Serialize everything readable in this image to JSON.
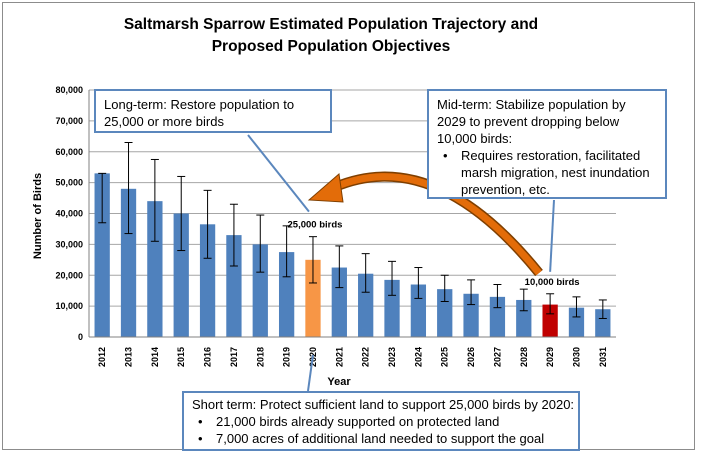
{
  "chart_data": {
    "type": "bar",
    "title": "Saltmarsh Sparrow Estimated Population Trajectory and Proposed Population Objectives",
    "title_lines": [
      "Saltmarsh Sparrow Estimated Population Trajectory and",
      "Proposed Population Objectives"
    ],
    "xlabel": "Year",
    "ylabel": "Number of Birds",
    "ylim": [
      0,
      80000
    ],
    "yticks": [
      0,
      10000,
      20000,
      30000,
      40000,
      50000,
      60000,
      70000,
      80000
    ],
    "ytick_labels": [
      "0",
      "10,000",
      "20,000",
      "30,000",
      "40,000",
      "50,000",
      "60,000",
      "70,000",
      "80,000"
    ],
    "grid": true,
    "categories": [
      "2012",
      "2013",
      "2014",
      "2015",
      "2016",
      "2017",
      "2018",
      "2019",
      "2020",
      "2021",
      "2022",
      "2023",
      "2024",
      "2025",
      "2026",
      "2027",
      "2028",
      "2029",
      "2030",
      "2031"
    ],
    "values": [
      53000,
      48000,
      44000,
      40000,
      36500,
      33000,
      30000,
      27500,
      25000,
      22500,
      20500,
      18500,
      17000,
      15500,
      14000,
      13000,
      12000,
      10500,
      9500,
      9000
    ],
    "error_low": [
      37000,
      33500,
      31000,
      28000,
      25500,
      23000,
      21000,
      19500,
      17500,
      16000,
      14500,
      13500,
      12500,
      11500,
      10500,
      9500,
      8500,
      7500,
      6500,
      6000
    ],
    "error_high": [
      53000,
      63000,
      57500,
      52000,
      47500,
      43000,
      39500,
      36000,
      32500,
      29500,
      27000,
      24500,
      22500,
      20000,
      18500,
      17000,
      15500,
      14000,
      13000,
      12000
    ],
    "colors": {
      "default": "#4f81bd",
      "highlight_2020": "#f79646",
      "highlight_2029": "#c00000",
      "arrow": "#e36c09",
      "callout_border": "#5b87bd",
      "error_bar": "#000000"
    },
    "data_labels": [
      {
        "category": "2020",
        "text": "25,000 birds"
      },
      {
        "category": "2029",
        "text": "10,000 birds"
      }
    ],
    "annotations": {
      "long_term": "Long-term: Restore population to 25,000 or more birds",
      "mid_term": {
        "text": "Mid-term: Stabilize population by 2029 to prevent dropping below 10,000 birds:",
        "bullets": [
          "Requires restoration, facilitated marsh migration, nest inundation prevention, etc."
        ]
      },
      "short_term": {
        "text": "Short term: Protect sufficient land to support 25,000 birds by 2020:",
        "bullets": [
          "21,000 birds already supported on protected land",
          "7,000 acres of additional land needed to support the goal"
        ]
      }
    }
  }
}
